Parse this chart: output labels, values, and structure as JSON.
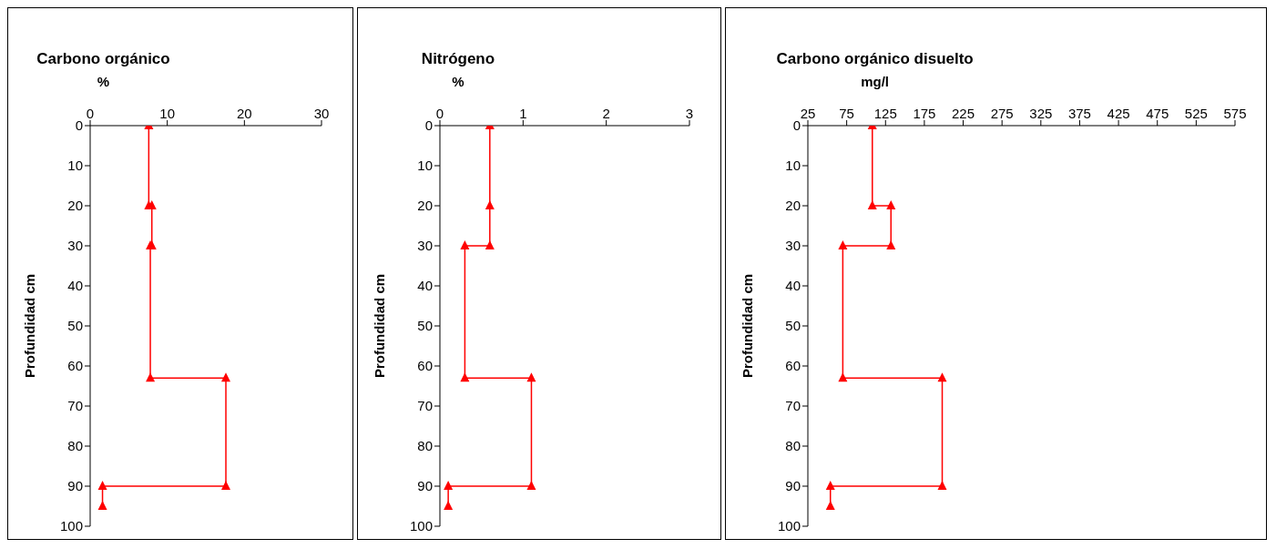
{
  "chart_data": [
    {
      "type": "line",
      "title": "Carbono orgánico",
      "xlabel": "%",
      "ylabel": "Profundidad cm",
      "xlim": [
        0,
        30
      ],
      "xticks": [
        0,
        10,
        20,
        30
      ],
      "ylim": [
        100,
        0
      ],
      "yticks": [
        0,
        10,
        20,
        30,
        40,
        50,
        60,
        70,
        80,
        90,
        100
      ],
      "marker": "triangle",
      "grid": false,
      "series": [
        {
          "color": "#ff0000",
          "x": [
            7.6,
            7.6,
            8.0,
            8.0,
            7.8,
            7.8,
            17.6,
            17.6,
            1.6,
            1.6
          ],
          "values": [
            0,
            20,
            20,
            30,
            30,
            63,
            63,
            90,
            90,
            95
          ]
        }
      ]
    },
    {
      "type": "line",
      "title": "Nitrógeno",
      "xlabel": "%",
      "ylabel": "Profundidad cm",
      "xlim": [
        0,
        3
      ],
      "xticks": [
        0,
        1,
        2,
        3
      ],
      "ylim": [
        100,
        0
      ],
      "yticks": [
        0,
        10,
        20,
        30,
        40,
        50,
        60,
        70,
        80,
        90,
        100
      ],
      "marker": "triangle",
      "grid": false,
      "series": [
        {
          "color": "#ff0000",
          "x": [
            0.6,
            0.6,
            0.6,
            0.3,
            0.3,
            1.1,
            1.1,
            0.1,
            0.1
          ],
          "values": [
            0,
            20,
            30,
            30,
            63,
            63,
            90,
            90,
            95
          ]
        }
      ]
    },
    {
      "type": "line",
      "title": "Carbono orgánico disuelto",
      "xlabel": "mg/l",
      "ylabel": "Profundidad cm",
      "xlim": [
        25,
        575
      ],
      "xticks": [
        25,
        75,
        125,
        175,
        225,
        275,
        325,
        375,
        425,
        475,
        525,
        575
      ],
      "ylim": [
        100,
        0
      ],
      "yticks": [
        0,
        10,
        20,
        30,
        40,
        50,
        60,
        70,
        80,
        90,
        100
      ],
      "marker": "triangle",
      "grid": false,
      "series": [
        {
          "color": "#ff0000",
          "x": [
            108,
            108,
            132,
            132,
            70,
            70,
            198,
            198,
            54,
            54
          ],
          "values": [
            0,
            20,
            20,
            30,
            30,
            63,
            63,
            90,
            90,
            95
          ]
        }
      ]
    }
  ]
}
